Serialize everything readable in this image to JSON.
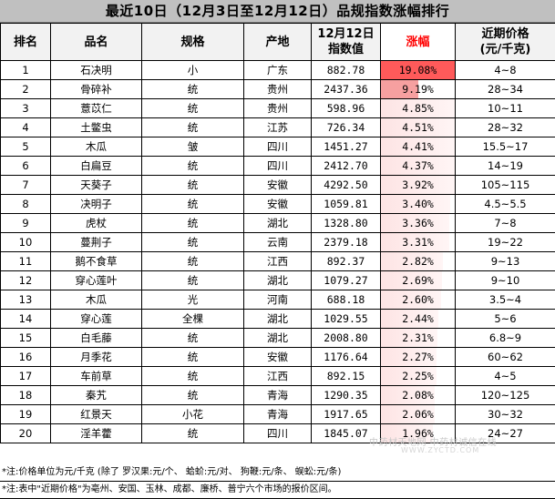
{
  "title": "最近10日（12月3日至12月12日）品规指数涨幅排行",
  "headers": {
    "rank": "排名",
    "name": "品名",
    "spec": "规格",
    "origin": "产地",
    "index_line1": "12月12日",
    "index_line2": "指数值",
    "gain": "涨幅",
    "price_line1": "近期价格",
    "price_line2": "(元/千克)"
  },
  "rows": [
    {
      "rank": "1",
      "name": "石决明",
      "spec": "小",
      "origin": "广东",
      "index": "882.78",
      "gain": "19.08%",
      "gain_value": 19.08,
      "price": "4~8"
    },
    {
      "rank": "2",
      "name": "骨碎补",
      "spec": "统",
      "origin": "贵州",
      "index": "2437.36",
      "gain": "9.19%",
      "gain_value": 9.19,
      "price": "28~34"
    },
    {
      "rank": "3",
      "name": "薏苡仁",
      "spec": "统",
      "origin": "贵州",
      "index": "598.96",
      "gain": "4.85%",
      "gain_value": 4.85,
      "price": "10~11"
    },
    {
      "rank": "4",
      "name": "土鳖虫",
      "spec": "统",
      "origin": "江苏",
      "index": "726.34",
      "gain": "4.51%",
      "gain_value": 4.51,
      "price": "28~32"
    },
    {
      "rank": "5",
      "name": "木瓜",
      "spec": "皱",
      "origin": "四川",
      "index": "1451.27",
      "gain": "4.41%",
      "gain_value": 4.41,
      "price": "15.5~17"
    },
    {
      "rank": "6",
      "name": "白扁豆",
      "spec": "统",
      "origin": "四川",
      "index": "2412.70",
      "gain": "4.37%",
      "gain_value": 4.37,
      "price": "14~19"
    },
    {
      "rank": "7",
      "name": "天葵子",
      "spec": "统",
      "origin": "安徽",
      "index": "4292.50",
      "gain": "3.92%",
      "gain_value": 3.92,
      "price": "105~115"
    },
    {
      "rank": "8",
      "name": "决明子",
      "spec": "统",
      "origin": "安徽",
      "index": "1059.81",
      "gain": "3.40%",
      "gain_value": 3.4,
      "price": "4.5~5.5"
    },
    {
      "rank": "9",
      "name": "虎杖",
      "spec": "统",
      "origin": "湖北",
      "index": "1328.80",
      "gain": "3.36%",
      "gain_value": 3.36,
      "price": "7~8"
    },
    {
      "rank": "10",
      "name": "蔓荆子",
      "spec": "统",
      "origin": "云南",
      "index": "2379.18",
      "gain": "3.31%",
      "gain_value": 3.31,
      "price": "19~22"
    },
    {
      "rank": "11",
      "name": "鹅不食草",
      "spec": "统",
      "origin": "江西",
      "index": "892.37",
      "gain": "2.82%",
      "gain_value": 2.82,
      "price": "9~13"
    },
    {
      "rank": "12",
      "name": "穿心莲叶",
      "spec": "统",
      "origin": "湖北",
      "index": "1079.27",
      "gain": "2.69%",
      "gain_value": 2.69,
      "price": "9~10"
    },
    {
      "rank": "13",
      "name": "木瓜",
      "spec": "光",
      "origin": "河南",
      "index": "688.18",
      "gain": "2.60%",
      "gain_value": 2.6,
      "price": "3.5~4"
    },
    {
      "rank": "14",
      "name": "穿心莲",
      "spec": "全棵",
      "origin": "湖北",
      "index": "1029.55",
      "gain": "2.44%",
      "gain_value": 2.44,
      "price": "5~6"
    },
    {
      "rank": "15",
      "name": "白毛藤",
      "spec": "统",
      "origin": "湖北",
      "index": "2008.80",
      "gain": "2.31%",
      "gain_value": 2.31,
      "price": "6.8~9"
    },
    {
      "rank": "16",
      "name": "月季花",
      "spec": "统",
      "origin": "安徽",
      "index": "1176.64",
      "gain": "2.27%",
      "gain_value": 2.27,
      "price": "60~62"
    },
    {
      "rank": "17",
      "name": "车前草",
      "spec": "统",
      "origin": "江西",
      "index": "892.15",
      "gain": "2.25%",
      "gain_value": 2.25,
      "price": "4~5"
    },
    {
      "rank": "18",
      "name": "秦艽",
      "spec": "统",
      "origin": "青海",
      "index": "1290.35",
      "gain": "2.08%",
      "gain_value": 2.08,
      "price": "120~125"
    },
    {
      "rank": "19",
      "name": "红景天",
      "spec": "小花",
      "origin": "青海",
      "index": "1917.65",
      "gain": "2.06%",
      "gain_value": 2.06,
      "price": "30~32"
    },
    {
      "rank": "20",
      "name": "淫羊藿",
      "spec": "统",
      "origin": "四川",
      "index": "1845.07",
      "gain": "1.96%",
      "gain_value": 1.96,
      "price": "24~27"
    }
  ],
  "notes": [
    "*注:价格单位为元/千克  (除了  罗汉果:元/个、  蛤蚧:元/对、  狗鞭:元/条、  蜈蚣:元/条)",
    "*注:表中\"近期价格\"为亳州、安国、玉林、成都、廉桥、普宁六个市场的报价区间。"
  ],
  "watermark": "中药材天地网 中药材诚信在线",
  "watermark_sub": "WWW.ZYCTD.COM",
  "colors": {
    "title_bg": "#c0c0c0",
    "header_bg": "#f2f2f2",
    "gain_header_text": "#ff0000",
    "gain_strong": "#ff5a5a",
    "gain_mid": "#f6a0a0",
    "gain_light": "#fde4e4"
  }
}
